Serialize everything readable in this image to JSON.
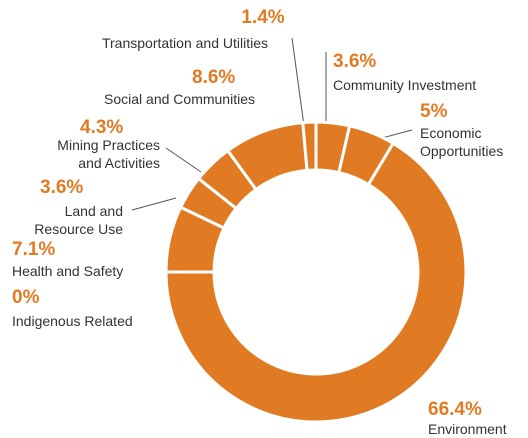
{
  "chart_data": {
    "type": "donut",
    "categories": [
      "Community Investment",
      "Economic\nOpportunities",
      "Environment",
      "Indigenous Related",
      "Health and Safety",
      "Land and\nResource Use",
      "Mining Practices\nand Activities",
      "Social and Communities",
      "Transportation and Utilities"
    ],
    "values": [
      3.6,
      5,
      66.4,
      0,
      7.1,
      3.6,
      4.3,
      8.6,
      1.4
    ],
    "value_labels": [
      "3.6%",
      "5%",
      "66.4%",
      "0%",
      "7.1%",
      "3.6%",
      "4.3%",
      "8.6%",
      "1.4%"
    ],
    "color": "#e07b24"
  }
}
